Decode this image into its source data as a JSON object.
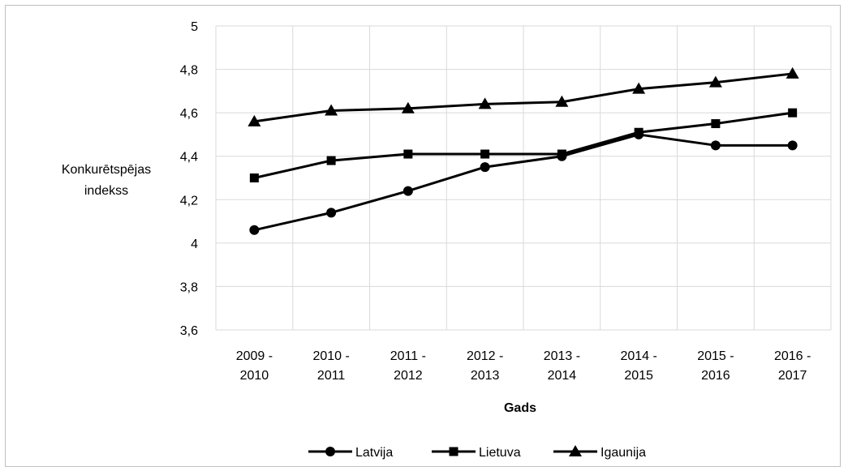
{
  "chart_data": {
    "type": "line",
    "title": "",
    "xlabel": "Gads",
    "ylabel": "Konkurētspējas indekss",
    "ylabel_lines": [
      "Konkurētspējas",
      "indekss"
    ],
    "ylim": [
      3.6,
      5
    ],
    "yticks": [
      "3,6",
      "3,8",
      "4",
      "4,2",
      "4,4",
      "4,6",
      "4,8",
      "5"
    ],
    "ytick_values": [
      3.6,
      3.8,
      4.0,
      4.2,
      4.4,
      4.6,
      4.8,
      5.0
    ],
    "categories": [
      [
        "2009 -",
        "2010"
      ],
      [
        "2010 -",
        "2011"
      ],
      [
        "2011 -",
        "2012"
      ],
      [
        "2012 -",
        "2013"
      ],
      [
        "2013 -",
        "2014"
      ],
      [
        "2014 -",
        "2015"
      ],
      [
        "2015 -",
        "2016"
      ],
      [
        "2016 -",
        "2017"
      ]
    ],
    "grid": true,
    "legend_position": "bottom",
    "series": [
      {
        "name": "Latvija",
        "marker": "circle",
        "color": "#000000",
        "values": [
          4.06,
          4.14,
          4.24,
          4.35,
          4.4,
          4.5,
          4.45,
          4.45
        ]
      },
      {
        "name": "Lietuva",
        "marker": "square",
        "color": "#000000",
        "values": [
          4.3,
          4.38,
          4.41,
          4.41,
          4.41,
          4.51,
          4.55,
          4.6
        ]
      },
      {
        "name": "Igaunija",
        "marker": "triangle",
        "color": "#000000",
        "values": [
          4.56,
          4.61,
          4.62,
          4.64,
          4.65,
          4.71,
          4.74,
          4.78
        ]
      }
    ]
  }
}
